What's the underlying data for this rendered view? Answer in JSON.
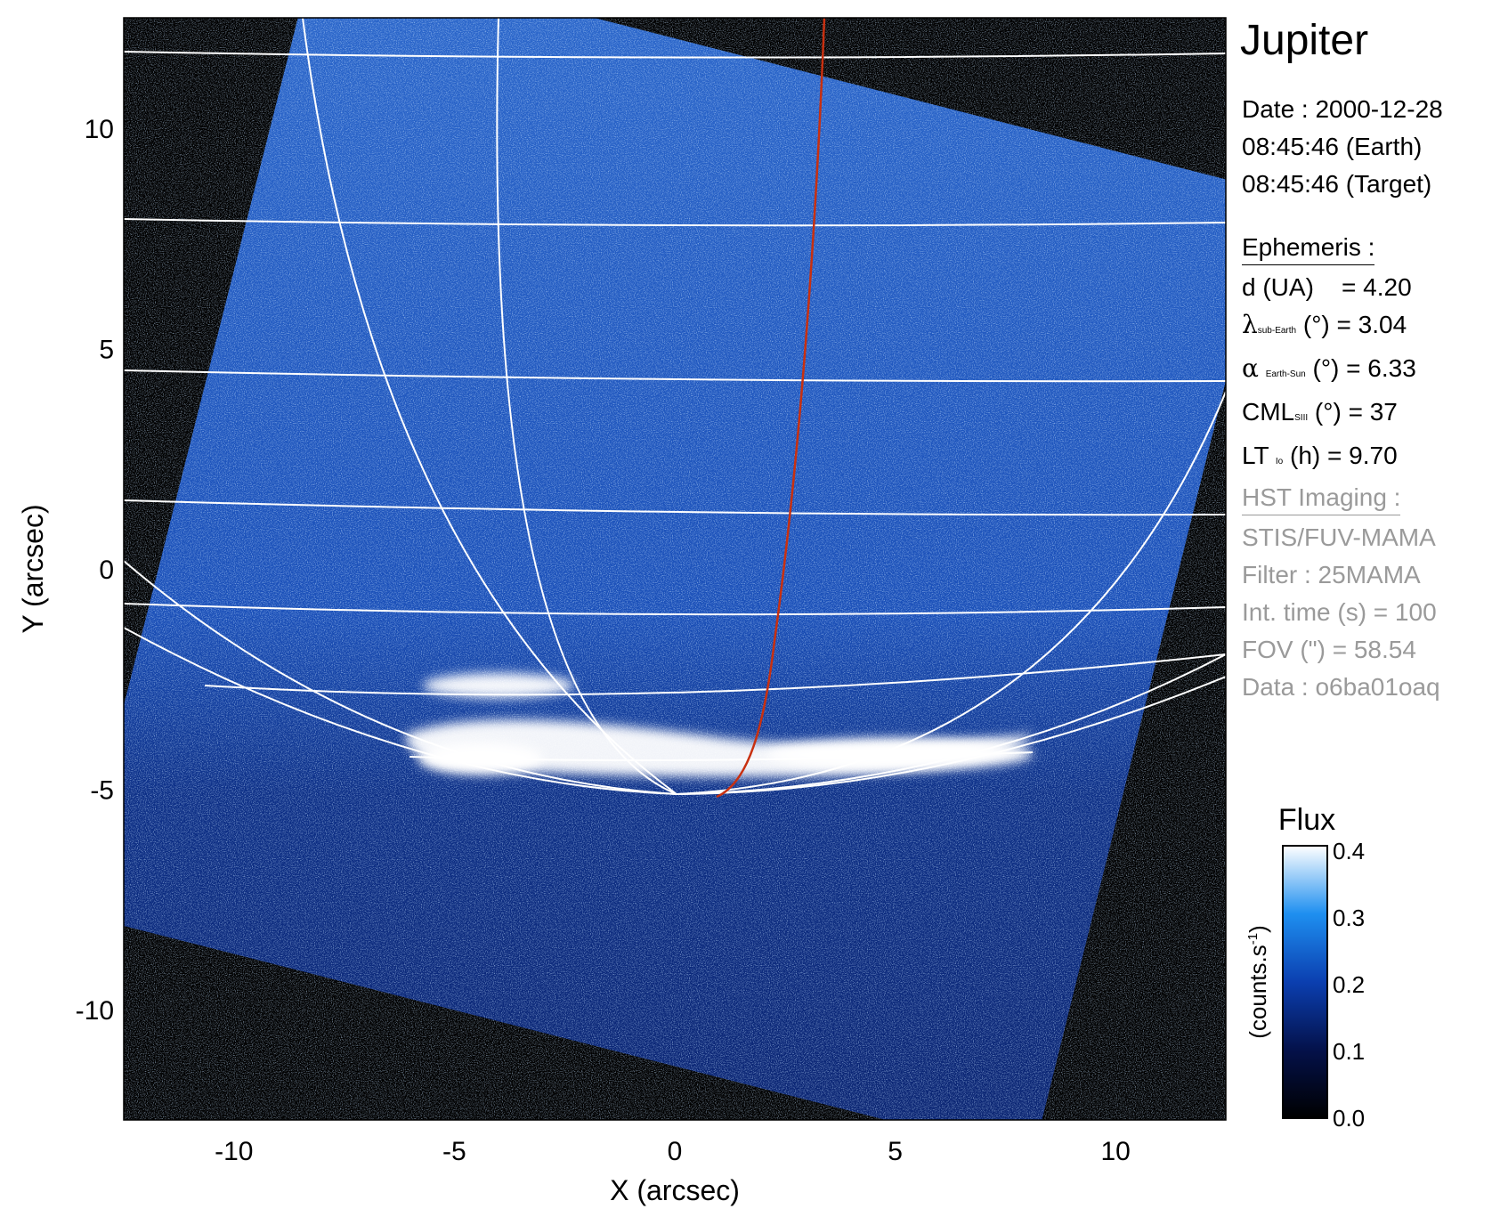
{
  "planet": "Jupiter",
  "date_line": "Date : 2000-12-28",
  "time_earth": "08:45:46 (Earth)",
  "time_target": "08:45:46 (Target)",
  "ephemeris": {
    "heading": "Ephemeris :",
    "d_label": "d (UA)",
    "d_value": "= 4.20",
    "lambda_symbol": "λ",
    "lambda_sub": "sub-Earth",
    "lambda_unit": "(°)",
    "lambda_value": "= 3.04",
    "alpha_symbol": "α",
    "alpha_sub": "Earth-Sun",
    "alpha_unit": "(°)",
    "alpha_value": "= 6.33",
    "cml_symbol": "CML",
    "cml_sub": "SIII",
    "cml_unit": "(°)",
    "cml_value": "= 37",
    "lt_symbol": "LT",
    "lt_sub": "Io",
    "lt_unit": "(h)",
    "lt_value": "= 9.70"
  },
  "imaging": {
    "heading": "HST Imaging :",
    "instrument": "STIS/FUV-MAMA",
    "filter": "Filter : 25MAMA",
    "int_time": "Int. time (s) = 100",
    "fov": "FOV (\") = 58.54",
    "data": "Data : o6ba01oaq"
  },
  "colorbar": {
    "title": "Flux",
    "label": "(counts.s",
    "label_sup": "-1",
    "label_close": ")",
    "ticks": [
      "0.0",
      "0.1",
      "0.2",
      "0.3",
      "0.4"
    ],
    "colors": [
      "#000000",
      "#04114a",
      "#0b3fb0",
      "#1e8ff0",
      "#ffffff"
    ]
  },
  "axes": {
    "xlabel": "X (arcsec)",
    "ylabel": "Y (arcsec)",
    "xlim": [
      -12.5,
      12.5
    ],
    "ylim": [
      -12.5,
      12.5
    ],
    "xticks": [
      "-10",
      "-5",
      "0",
      "5",
      "10"
    ],
    "yticks": [
      "10",
      "5",
      "0",
      "-5",
      "-10"
    ]
  },
  "colors": {
    "background": "#000000",
    "image_blue": "#1848a8",
    "grid": "#ffffff",
    "footprint": "#c83010",
    "aurora": "#ffffff"
  }
}
